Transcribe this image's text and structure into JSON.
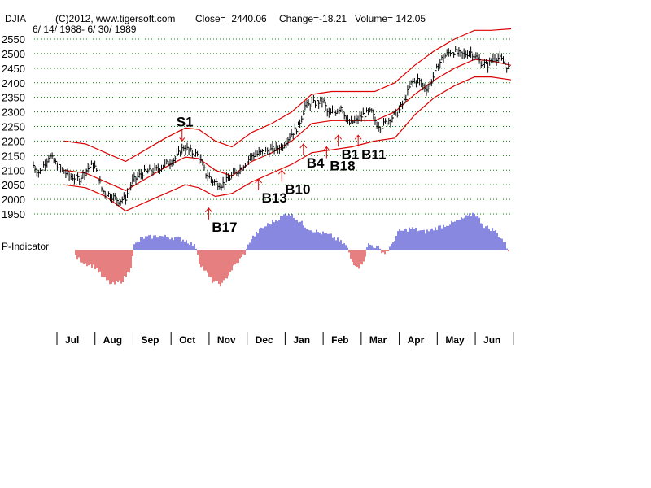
{
  "header": {
    "symbol": "DJIA",
    "copyright": "(C)2012, www.tigersoft.com",
    "close_label": "Close=  2440.06",
    "change_label": "Change=-18.21",
    "volume_label": "Volume= 142.05",
    "date_range": "6/ 14/ 1988- 6/ 30/ 1989"
  },
  "colors": {
    "price_bars": "#000000",
    "bands": "#dd0000",
    "indicator_positive": "#1010c0",
    "indicator_negative": "#cc0000",
    "gridlines": "#008800",
    "buy_arrows": "#dd0000",
    "sell_arrows": "#dd0000"
  },
  "chart_data": {
    "type": "ohlc-bars-with-bands-and-indicator",
    "title": "DJIA",
    "ylim": [
      1925,
      2585
    ],
    "yticks": [
      1950,
      2000,
      2050,
      2100,
      2150,
      2200,
      2250,
      2300,
      2350,
      2400,
      2450,
      2500,
      2550
    ],
    "months": [
      "Jul",
      "Aug",
      "Sep",
      "Oct",
      "Nov",
      "Dec",
      "Jan",
      "Feb",
      "Mar",
      "Apr",
      "May",
      "Jun"
    ],
    "xmax": 12.5,
    "price_keypoints": [
      [
        0.0,
        2120
      ],
      [
        0.2,
        2090
      ],
      [
        0.5,
        2150
      ],
      [
        0.8,
        2110
      ],
      [
        1.1,
        2080
      ],
      [
        1.4,
        2070
      ],
      [
        1.7,
        2110
      ],
      [
        1.85,
        2120
      ],
      [
        2.1,
        2030
      ],
      [
        2.4,
        2010
      ],
      [
        2.6,
        1995
      ],
      [
        2.8,
        2005
      ],
      [
        3.0,
        2060
      ],
      [
        3.3,
        2090
      ],
      [
        3.7,
        2100
      ],
      [
        4.0,
        2120
      ],
      [
        4.3,
        2140
      ],
      [
        4.55,
        2180
      ],
      [
        4.8,
        2160
      ],
      [
        5.0,
        2150
      ],
      [
        5.2,
        2090
      ],
      [
        5.45,
        2060
      ],
      [
        5.7,
        2050
      ],
      [
        6.0,
        2080
      ],
      [
        6.3,
        2110
      ],
      [
        6.6,
        2150
      ],
      [
        6.9,
        2160
      ],
      [
        7.2,
        2170
      ],
      [
        7.5,
        2180
      ],
      [
        7.75,
        2220
      ],
      [
        8.0,
        2250
      ],
      [
        8.2,
        2320
      ],
      [
        8.5,
        2330
      ],
      [
        8.75,
        2340
      ],
      [
        8.9,
        2290
      ],
      [
        9.1,
        2300
      ],
      [
        9.3,
        2320
      ],
      [
        9.5,
        2260
      ],
      [
        9.75,
        2270
      ],
      [
        9.95,
        2290
      ],
      [
        10.2,
        2300
      ],
      [
        10.35,
        2260
      ],
      [
        10.5,
        2250
      ],
      [
        10.8,
        2280
      ],
      [
        11.0,
        2300
      ],
      [
        11.2,
        2340
      ],
      [
        11.4,
        2400
      ],
      [
        11.6,
        2410
      ],
      [
        11.75,
        2390
      ],
      [
        11.9,
        2380
      ],
      [
        12.1,
        2430
      ],
      [
        12.3,
        2480
      ],
      [
        12.6,
        2510
      ],
      [
        12.9,
        2495
      ],
      [
        13.2,
        2505
      ],
      [
        13.5,
        2470
      ],
      [
        13.7,
        2460
      ],
      [
        13.9,
        2490
      ],
      [
        14.1,
        2480
      ],
      [
        14.4,
        2440
      ]
    ],
    "middle_band": [
      [
        0.95,
        2100
      ],
      [
        1.6,
        2090
      ],
      [
        2.2,
        2060
      ],
      [
        2.8,
        2030
      ],
      [
        3.4,
        2070
      ],
      [
        4.0,
        2110
      ],
      [
        4.6,
        2145
      ],
      [
        5.0,
        2140
      ],
      [
        5.5,
        2100
      ],
      [
        6.0,
        2080
      ],
      [
        6.6,
        2130
      ],
      [
        7.2,
        2160
      ],
      [
        7.8,
        2200
      ],
      [
        8.4,
        2260
      ],
      [
        9.0,
        2270
      ],
      [
        9.6,
        2270
      ],
      [
        10.3,
        2270
      ],
      [
        10.9,
        2300
      ],
      [
        11.5,
        2360
      ],
      [
        12.1,
        2410
      ],
      [
        12.7,
        2450
      ],
      [
        13.3,
        2480
      ],
      [
        13.8,
        2475
      ],
      [
        14.4,
        2460
      ]
    ],
    "upper_band": [
      [
        0.95,
        2200
      ],
      [
        1.6,
        2190
      ],
      [
        2.2,
        2160
      ],
      [
        2.8,
        2130
      ],
      [
        3.4,
        2170
      ],
      [
        4.0,
        2210
      ],
      [
        4.6,
        2245
      ],
      [
        5.0,
        2240
      ],
      [
        5.5,
        2200
      ],
      [
        6.0,
        2180
      ],
      [
        6.6,
        2230
      ],
      [
        7.2,
        2260
      ],
      [
        7.8,
        2300
      ],
      [
        8.4,
        2360
      ],
      [
        9.0,
        2370
      ],
      [
        9.6,
        2370
      ],
      [
        10.3,
        2370
      ],
      [
        10.9,
        2400
      ],
      [
        11.5,
        2460
      ],
      [
        12.1,
        2510
      ],
      [
        12.7,
        2550
      ],
      [
        13.3,
        2580
      ],
      [
        13.8,
        2580
      ],
      [
        14.4,
        2585
      ]
    ],
    "lower_band": [
      [
        0.95,
        2050
      ],
      [
        1.6,
        2040
      ],
      [
        2.2,
        2010
      ],
      [
        2.8,
        1960
      ],
      [
        3.4,
        1990
      ],
      [
        4.0,
        2020
      ],
      [
        4.6,
        2050
      ],
      [
        5.0,
        2040
      ],
      [
        5.5,
        2010
      ],
      [
        6.0,
        2020
      ],
      [
        6.6,
        2060
      ],
      [
        7.2,
        2090
      ],
      [
        7.8,
        2120
      ],
      [
        8.4,
        2160
      ],
      [
        9.0,
        2170
      ],
      [
        9.6,
        2180
      ],
      [
        10.3,
        2200
      ],
      [
        10.9,
        2210
      ],
      [
        11.5,
        2290
      ],
      [
        12.1,
        2350
      ],
      [
        12.7,
        2390
      ],
      [
        13.3,
        2420
      ],
      [
        13.8,
        2420
      ],
      [
        14.4,
        2410
      ]
    ],
    "indicator_label": "P-Indicator",
    "indicator_keypoints": [
      [
        1.25,
        0
      ],
      [
        1.3,
        -0.2
      ],
      [
        1.6,
        -0.35
      ],
      [
        1.9,
        -0.45
      ],
      [
        2.1,
        -0.7
      ],
      [
        2.4,
        -0.9
      ],
      [
        2.7,
        -0.8
      ],
      [
        2.95,
        -0.5
      ],
      [
        3.05,
        0.1
      ],
      [
        3.3,
        0.3
      ],
      [
        3.8,
        0.35
      ],
      [
        4.3,
        0.3
      ],
      [
        4.6,
        0.25
      ],
      [
        4.95,
        0.05
      ],
      [
        5.0,
        -0.3
      ],
      [
        5.4,
        -0.8
      ],
      [
        5.7,
        -0.9
      ],
      [
        6.0,
        -0.5
      ],
      [
        6.3,
        -0.2
      ],
      [
        6.45,
        0
      ],
      [
        6.55,
        0.25
      ],
      [
        6.9,
        0.55
      ],
      [
        7.3,
        0.75
      ],
      [
        7.7,
        0.95
      ],
      [
        8.0,
        0.75
      ],
      [
        8.3,
        0.55
      ],
      [
        8.6,
        0.45
      ],
      [
        9.0,
        0.35
      ],
      [
        9.45,
        0.1
      ],
      [
        9.6,
        -0.3
      ],
      [
        9.85,
        -0.45
      ],
      [
        10.0,
        -0.2
      ],
      [
        10.1,
        0.15
      ],
      [
        10.4,
        0.05
      ],
      [
        10.6,
        -0.1
      ],
      [
        10.8,
        0.1
      ],
      [
        11.0,
        0.45
      ],
      [
        11.4,
        0.55
      ],
      [
        11.8,
        0.45
      ],
      [
        12.3,
        0.6
      ],
      [
        12.7,
        0.7
      ],
      [
        13.1,
        0.85
      ],
      [
        13.3,
        0.95
      ],
      [
        13.6,
        0.6
      ],
      [
        13.9,
        0.5
      ],
      [
        14.2,
        0.2
      ],
      [
        14.4,
        -0.15
      ]
    ],
    "signals": [
      {
        "label": "S1",
        "type": "sell",
        "x": 4.5,
        "price": 2200
      },
      {
        "label": "B17",
        "type": "buy",
        "x": 5.3,
        "price": 1970
      },
      {
        "label": "B13",
        "type": "buy",
        "x": 6.8,
        "price": 2070
      },
      {
        "label": "B10",
        "type": "buy",
        "x": 7.5,
        "price": 2100
      },
      {
        "label": "B4",
        "type": "buy",
        "x": 8.15,
        "price": 2190
      },
      {
        "label": "B18",
        "type": "buy",
        "x": 8.85,
        "price": 2180
      },
      {
        "label": "B1",
        "type": "buy",
        "x": 9.2,
        "price": 2220
      },
      {
        "label": "B11",
        "type": "buy",
        "x": 9.8,
        "price": 2220
      }
    ]
  }
}
